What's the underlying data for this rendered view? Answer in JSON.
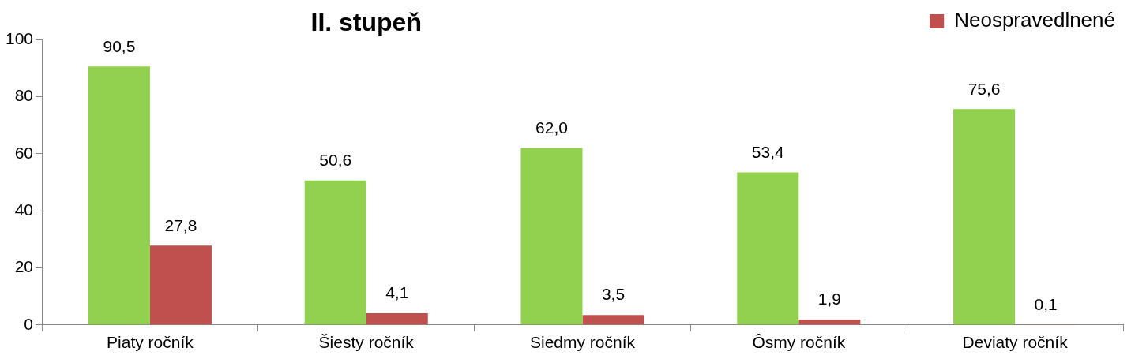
{
  "chart_data": {
    "type": "bar",
    "title": "II. stupeň",
    "categories": [
      "Piaty ročník",
      "Šiesty ročník",
      "Siedmy ročník",
      "Ôsmy ročník",
      "Deviaty ročník"
    ],
    "series": [
      {
        "color": "#92d050",
        "values": [
          90.5,
          50.6,
          62.0,
          53.4,
          75.6
        ],
        "value_labels": [
          "90,5",
          "50,6",
          "62,0",
          "53,4",
          "75,6"
        ]
      },
      {
        "name": "Neospravedlnené",
        "color": "#c0504d",
        "values": [
          27.8,
          4.1,
          3.5,
          1.9,
          0.1
        ],
        "value_labels": [
          "27,8",
          "4,1",
          "3,5",
          "1,9",
          "0,1"
        ]
      }
    ],
    "ylim": [
      0,
      100
    ],
    "yticks": [
      0,
      20,
      40,
      60,
      80,
      100
    ],
    "grid": false,
    "legend": "top right"
  }
}
